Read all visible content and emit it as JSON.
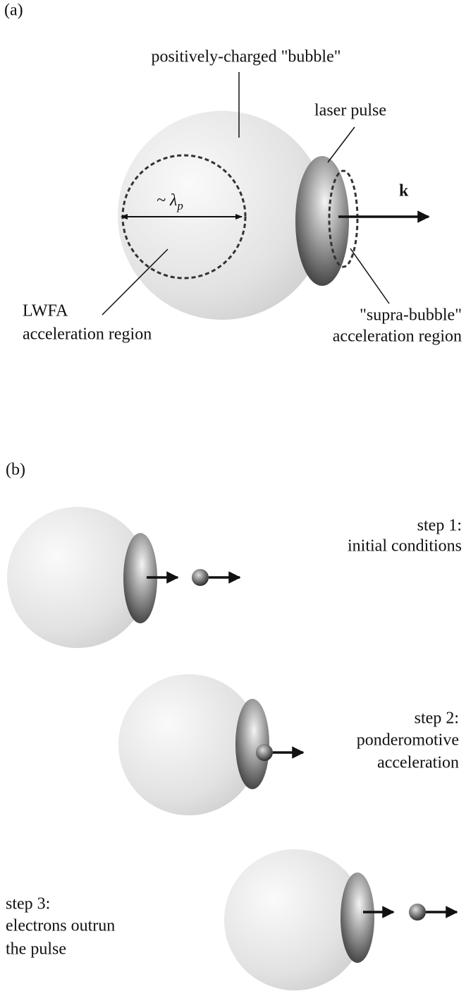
{
  "panel_a": {
    "label": "(a)",
    "bubble_label": "positively-charged \"bubble\"",
    "pulse_label": "laser pulse",
    "wavelength_symbol": "~ λ",
    "wavelength_subscript": "p",
    "wave_vector": "k",
    "lwfa_label": [
      "LWFA",
      "acceleration region"
    ],
    "supra_label": [
      "\"supra-bubble\"",
      "acceleration region"
    ]
  },
  "panel_b": {
    "label": "(b)",
    "steps": [
      {
        "lines": [
          "step 1:",
          "initial conditions"
        ]
      },
      {
        "lines": [
          "step 2:",
          "ponderomotive",
          "acceleration"
        ]
      },
      {
        "lines": [
          "step 3:",
          "electrons outrun",
          "the pulse"
        ]
      }
    ]
  }
}
